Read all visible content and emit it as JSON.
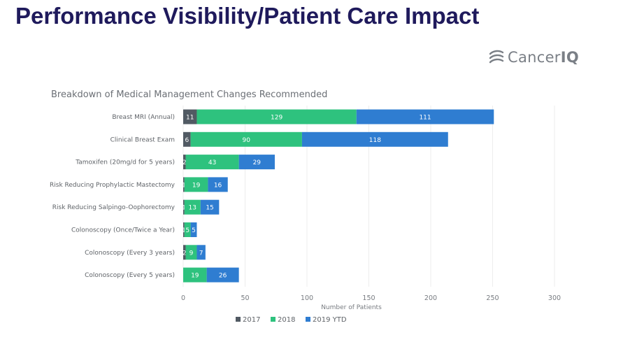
{
  "slide": {
    "title": "Performance Visibility/Patient Care Impact"
  },
  "logo": {
    "text_main": "Cancer",
    "text_bold": "IQ",
    "icon": "cancer-iq-logo-icon"
  },
  "colors": {
    "title": "#1f1a5c",
    "series_2017": "#515a63",
    "series_2018": "#2ec27e",
    "series_2019": "#2f7dd1",
    "grid": "#ededed"
  },
  "chart_data": {
    "type": "bar",
    "orientation": "horizontal",
    "stacked": true,
    "title": "Breakdown of Medical Management Changes Recommended",
    "xlabel": "Number of Patients",
    "ylabel": "",
    "xlim": [
      0,
      300
    ],
    "xticks": [
      0,
      50,
      100,
      150,
      200,
      250,
      300
    ],
    "grid": true,
    "legend_position": "bottom",
    "categories": [
      "Breast MRI (Annual)",
      "Clinical Breast Exam",
      "Tamoxifen (20mg/d for 5 years)",
      "Risk Reducing Prophylactic Mastectomy",
      "Risk Reducing Salpingo-Oophorectomy",
      "Colonoscopy (Once/Twice a Year)",
      "Colonoscopy (Every 3 years)",
      "Colonoscopy (Every 5 years)"
    ],
    "series": [
      {
        "name": "2017",
        "values": [
          11,
          6,
          2,
          1,
          1,
          1,
          2,
          0
        ],
        "labels": [
          "11",
          "6",
          "2",
          "1",
          "1",
          "1",
          "2",
          ""
        ]
      },
      {
        "name": "2018",
        "values": [
          129,
          90,
          43,
          19,
          13,
          5,
          9,
          19
        ],
        "labels": [
          "129",
          "90",
          "43",
          "19",
          "13",
          "5",
          "9",
          "19"
        ]
      },
      {
        "name": "2019 YTD",
        "values": [
          111,
          118,
          29,
          16,
          15,
          5,
          7,
          26
        ],
        "labels": [
          "111",
          "118",
          "29",
          "16",
          "15",
          "5",
          "7",
          "26"
        ]
      }
    ]
  }
}
